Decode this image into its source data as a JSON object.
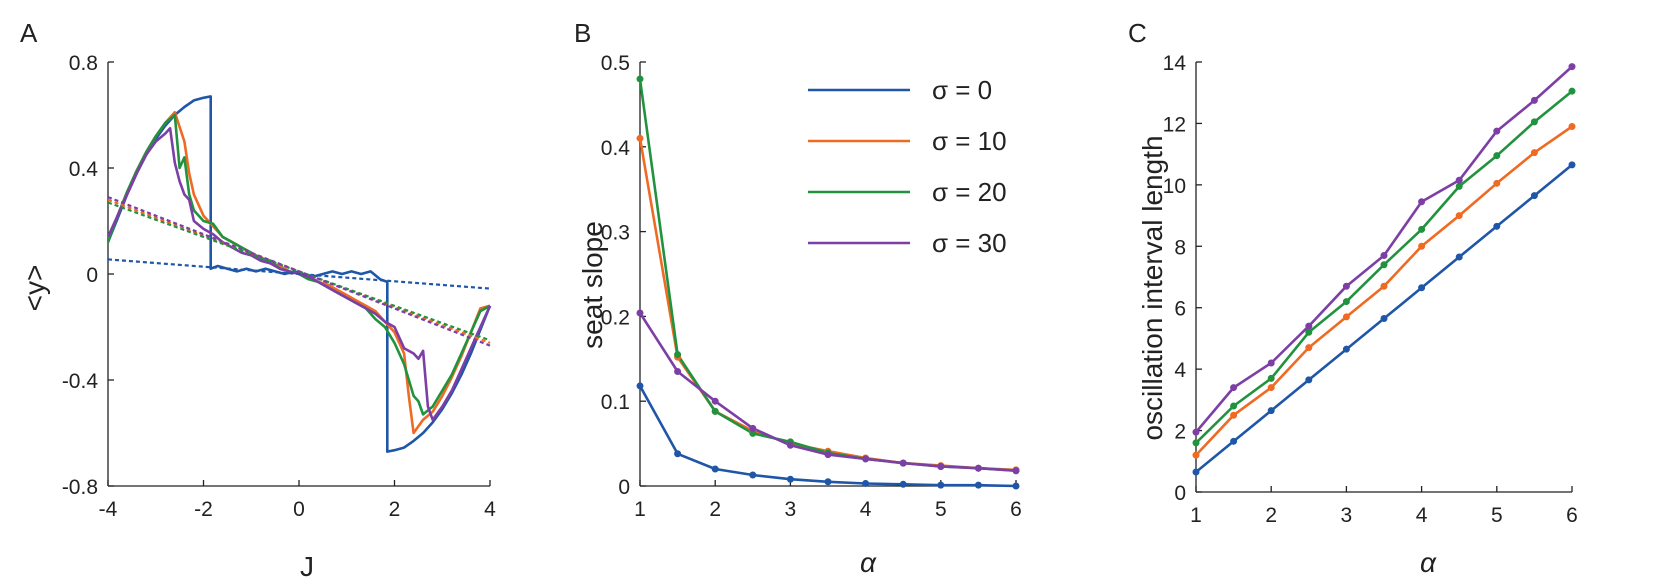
{
  "colors": {
    "sigma0": "#1f56a8",
    "sigma10": "#ef6a22",
    "sigma20": "#21923e",
    "sigma30": "#7d3fa6",
    "axis": "#222222"
  },
  "chart_data": [
    {
      "type": "line",
      "panel": "A",
      "xlabel": "J",
      "ylabel": "<y>",
      "xlim": [
        -4,
        4
      ],
      "ylim": [
        -0.8,
        0.8
      ],
      "xticks": [
        "-4",
        "-2",
        "0",
        "2",
        "4"
      ],
      "yticks": [
        "0.8",
        "0.4",
        "0",
        "-0.4",
        "-0.8"
      ],
      "series": [
        {
          "color": "#1f56a8",
          "x": [
            -4,
            -3.8,
            -3.6,
            -3.4,
            -3.2,
            -3.0,
            -2.8,
            -2.6,
            -2.4,
            -2.2,
            -2.0,
            -1.85,
            -1.85,
            -1.7,
            -1.5,
            -1.3,
            -1.1,
            -0.9,
            -0.7,
            -0.5,
            -0.3,
            -0.1,
            0.1,
            0.3,
            0.5,
            0.7,
            0.9,
            1.1,
            1.3,
            1.5,
            1.7,
            1.85,
            1.85,
            2.0,
            2.2,
            2.4,
            2.6,
            2.8,
            3.0,
            3.2,
            3.4,
            3.6,
            3.8,
            4.0
          ],
          "y": [
            0.12,
            0.21,
            0.3,
            0.38,
            0.45,
            0.51,
            0.56,
            0.6,
            0.63,
            0.655,
            0.665,
            0.67,
            0.02,
            0.03,
            0.02,
            0.01,
            0.02,
            0.01,
            0.02,
            0.01,
            0.0,
            0.01,
            0.0,
            -0.01,
            0.0,
            0.01,
            0.0,
            0.01,
            0.0,
            0.01,
            -0.02,
            -0.03,
            -0.67,
            -0.665,
            -0.655,
            -0.63,
            -0.6,
            -0.56,
            -0.51,
            -0.45,
            -0.38,
            -0.3,
            -0.21,
            -0.12
          ]
        },
        {
          "color": "#ef6a22",
          "x": [
            -4,
            -3.8,
            -3.6,
            -3.4,
            -3.2,
            -3.0,
            -2.8,
            -2.6,
            -2.4,
            -2.3,
            -2.2,
            -2.0,
            -1.8,
            -1.6,
            -1.4,
            -1.2,
            -1.0,
            -0.8,
            -0.6,
            -0.4,
            -0.2,
            0.0,
            0.2,
            0.4,
            0.6,
            0.8,
            1.0,
            1.2,
            1.4,
            1.6,
            1.8,
            2.0,
            2.2,
            2.3,
            2.4,
            2.6,
            2.8,
            3.0,
            3.2,
            3.4,
            3.6,
            3.8,
            4.0
          ],
          "y": [
            0.13,
            0.22,
            0.31,
            0.39,
            0.46,
            0.52,
            0.57,
            0.61,
            0.5,
            0.38,
            0.3,
            0.22,
            0.18,
            0.14,
            0.12,
            0.1,
            0.08,
            0.06,
            0.04,
            0.03,
            0.01,
            0.0,
            -0.01,
            -0.03,
            -0.04,
            -0.06,
            -0.08,
            -0.1,
            -0.12,
            -0.14,
            -0.18,
            -0.22,
            -0.3,
            -0.46,
            -0.6,
            -0.55,
            -0.52,
            -0.46,
            -0.39,
            -0.31,
            -0.22,
            -0.13,
            -0.12
          ]
        },
        {
          "color": "#21923e",
          "x": [
            -4,
            -3.8,
            -3.6,
            -3.4,
            -3.2,
            -3.0,
            -2.8,
            -2.6,
            -2.5,
            -2.4,
            -2.3,
            -2.2,
            -2.0,
            -1.8,
            -1.6,
            -1.4,
            -1.2,
            -1.0,
            -0.8,
            -0.6,
            -0.4,
            -0.2,
            0.0,
            0.2,
            0.4,
            0.6,
            0.8,
            1.0,
            1.2,
            1.4,
            1.6,
            1.8,
            2.0,
            2.2,
            2.4,
            2.5,
            2.6,
            2.8,
            3.0,
            3.2,
            3.4,
            3.6,
            3.8,
            4.0
          ],
          "y": [
            0.12,
            0.22,
            0.31,
            0.39,
            0.46,
            0.52,
            0.57,
            0.6,
            0.4,
            0.44,
            0.3,
            0.24,
            0.2,
            0.19,
            0.14,
            0.12,
            0.1,
            0.08,
            0.06,
            0.05,
            0.02,
            0.01,
            0.0,
            -0.02,
            -0.03,
            -0.05,
            -0.07,
            -0.09,
            -0.11,
            -0.13,
            -0.17,
            -0.2,
            -0.26,
            -0.34,
            -0.46,
            -0.48,
            -0.53,
            -0.5,
            -0.44,
            -0.38,
            -0.3,
            -0.22,
            -0.14,
            -0.12
          ]
        },
        {
          "color": "#7d3fa6",
          "x": [
            -4,
            -3.8,
            -3.6,
            -3.4,
            -3.2,
            -3.0,
            -2.8,
            -2.7,
            -2.6,
            -2.5,
            -2.4,
            -2.3,
            -2.2,
            -2.0,
            -1.8,
            -1.6,
            -1.4,
            -1.2,
            -1.0,
            -0.8,
            -0.6,
            -0.4,
            -0.2,
            0.0,
            0.2,
            0.4,
            0.6,
            0.8,
            1.0,
            1.2,
            1.4,
            1.6,
            1.8,
            2.0,
            2.2,
            2.4,
            2.5,
            2.6,
            2.7,
            2.8,
            3.0,
            3.2,
            3.4,
            3.6,
            3.8,
            4.0
          ],
          "y": [
            0.14,
            0.22,
            0.3,
            0.38,
            0.45,
            0.5,
            0.53,
            0.55,
            0.42,
            0.35,
            0.3,
            0.28,
            0.2,
            0.17,
            0.15,
            0.12,
            0.1,
            0.08,
            0.07,
            0.05,
            0.04,
            0.02,
            0.01,
            0.0,
            -0.01,
            -0.03,
            -0.05,
            -0.07,
            -0.09,
            -0.11,
            -0.13,
            -0.15,
            -0.18,
            -0.2,
            -0.28,
            -0.3,
            -0.32,
            -0.29,
            -0.5,
            -0.55,
            -0.5,
            -0.44,
            -0.36,
            -0.28,
            -0.2,
            -0.12
          ]
        },
        {
          "color": "#1f56a8",
          "dashed": true,
          "x": [
            -4,
            4
          ],
          "y": [
            0.055,
            -0.055
          ]
        },
        {
          "color": "#ef6a22",
          "dashed": true,
          "x": [
            -4,
            4
          ],
          "y": [
            0.28,
            -0.26
          ]
        },
        {
          "color": "#21923e",
          "dashed": true,
          "x": [
            -4,
            4
          ],
          "y": [
            0.27,
            -0.25
          ]
        },
        {
          "color": "#7d3fa6",
          "dashed": true,
          "x": [
            -4,
            4
          ],
          "y": [
            0.29,
            -0.27
          ]
        }
      ]
    },
    {
      "type": "line",
      "panel": "B",
      "xlabel": "α",
      "ylabel": "seat slope",
      "xlim": [
        1,
        6
      ],
      "ylim": [
        0,
        0.5
      ],
      "xticks": [
        "1",
        "2",
        "3",
        "4",
        "5",
        "6"
      ],
      "yticks": [
        "0.5",
        "0.4",
        "0.3",
        "0.2",
        "0.1",
        "0"
      ],
      "legend": {
        "placement": "top-right",
        "entries": [
          "σ = 0",
          "σ = 10",
          "σ = 20",
          "σ = 30"
        ]
      },
      "x": [
        1,
        1.5,
        2,
        2.5,
        3,
        3.5,
        4,
        4.5,
        5,
        5.5,
        6
      ],
      "series": [
        {
          "name": "σ = 0",
          "color": "#1f56a8",
          "values": [
            0.118,
            0.038,
            0.02,
            0.013,
            0.008,
            0.005,
            0.003,
            0.002,
            0.001,
            0.001,
            0.0
          ]
        },
        {
          "name": "σ = 10",
          "color": "#ef6a22",
          "values": [
            0.41,
            0.152,
            0.088,
            0.065,
            0.05,
            0.041,
            0.033,
            0.027,
            0.024,
            0.021,
            0.019
          ]
        },
        {
          "name": "σ = 20",
          "color": "#21923e",
          "values": [
            0.48,
            0.155,
            0.088,
            0.062,
            0.052,
            0.039,
            0.032,
            0.027,
            0.023,
            0.021,
            0.018
          ]
        },
        {
          "name": "σ = 30",
          "color": "#7d3fa6",
          "values": [
            0.204,
            0.135,
            0.1,
            0.068,
            0.048,
            0.037,
            0.032,
            0.027,
            0.023,
            0.021,
            0.018
          ]
        }
      ]
    },
    {
      "type": "line",
      "panel": "C",
      "xlabel": "α",
      "ylabel": "oscillation interval length",
      "xlim": [
        1,
        6
      ],
      "ylim": [
        0,
        14
      ],
      "xticks": [
        "1",
        "2",
        "3",
        "4",
        "5",
        "6"
      ],
      "yticks": [
        "14",
        "12",
        "10",
        "8",
        "6",
        "4",
        "2",
        "0"
      ],
      "x": [
        1,
        1.5,
        2,
        2.5,
        3,
        3.5,
        4,
        4.5,
        5,
        5.5,
        6
      ],
      "series": [
        {
          "color": "#1f56a8",
          "values": [
            0.65,
            1.65,
            2.65,
            3.65,
            4.65,
            5.65,
            6.65,
            7.65,
            8.65,
            9.65,
            10.65
          ]
        },
        {
          "color": "#ef6a22",
          "values": [
            1.2,
            2.5,
            3.4,
            4.7,
            5.7,
            6.7,
            8.0,
            9.0,
            10.05,
            11.05,
            11.9
          ]
        },
        {
          "color": "#21923e",
          "values": [
            1.6,
            2.8,
            3.7,
            5.2,
            6.2,
            7.4,
            8.55,
            9.95,
            10.95,
            12.05,
            13.05
          ]
        },
        {
          "color": "#7d3fa6",
          "values": [
            1.95,
            3.4,
            4.2,
            5.4,
            6.7,
            7.7,
            9.45,
            10.15,
            11.75,
            12.75,
            13.85
          ]
        }
      ]
    }
  ]
}
